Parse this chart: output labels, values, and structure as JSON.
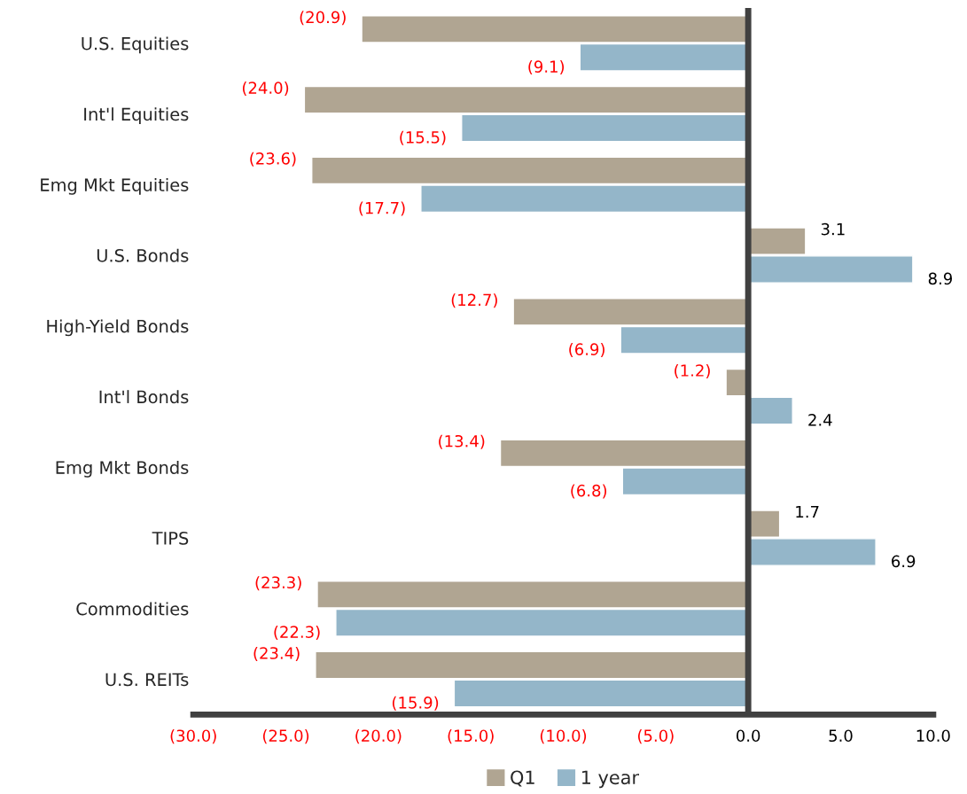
{
  "chart_data": {
    "type": "bar",
    "orientation": "horizontal",
    "categories": [
      "U.S. Equities",
      "Int'l Equities",
      "Emg Mkt Equities",
      "U.S. Bonds",
      "High-Yield Bonds",
      "Int'l Bonds",
      "Emg Mkt Bonds",
      "TIPS",
      "Commodities",
      "U.S. REITs"
    ],
    "series": [
      {
        "name": "Q1",
        "color": "#b0a592",
        "values": [
          -20.9,
          -24.0,
          -23.6,
          3.1,
          -12.7,
          -1.2,
          -13.4,
          1.7,
          -23.3,
          -23.4
        ],
        "value_labels": [
          "(20.9)",
          "(24.0)",
          "(23.6)",
          "3.1",
          "(12.7)",
          "(1.2)",
          "(13.4)",
          "1.7",
          "(23.3)",
          "(23.4)"
        ]
      },
      {
        "name": "1 year",
        "color": "#94b6c9",
        "values": [
          -9.1,
          -15.5,
          -17.7,
          8.9,
          -6.9,
          2.4,
          -6.8,
          6.9,
          -22.3,
          -15.9
        ],
        "value_labels": [
          "(9.1)",
          "(15.5)",
          "(17.7)",
          "8.9",
          "(6.9)",
          "2.4",
          "(6.8)",
          "6.9",
          "(22.3)",
          "(15.9)"
        ]
      }
    ],
    "xlim": [
      -30,
      10
    ],
    "xticks": [
      {
        "value": -30,
        "label": "(30.0)"
      },
      {
        "value": -25,
        "label": "(25.0)"
      },
      {
        "value": -20,
        "label": "(20.0)"
      },
      {
        "value": -15,
        "label": "(15.0)"
      },
      {
        "value": -10,
        "label": "(10.0)"
      },
      {
        "value": -5,
        "label": "(5.0)"
      },
      {
        "value": 0,
        "label": "0.0"
      },
      {
        "value": 5,
        "label": "5.0"
      },
      {
        "value": 10,
        "label": "10.0"
      }
    ],
    "ref_lines": [
      {
        "axis": "x",
        "value": 0,
        "color": "#404040"
      }
    ],
    "legend": "bottom",
    "grid": false
  }
}
